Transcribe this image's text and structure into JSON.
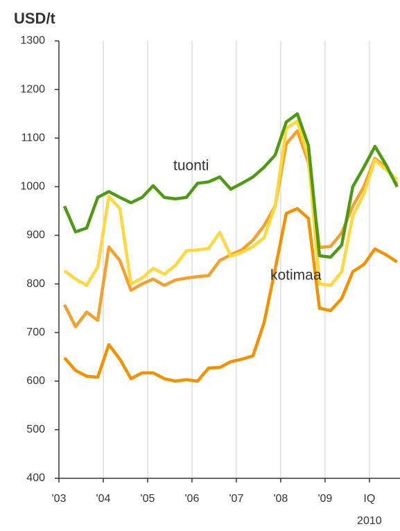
{
  "chart_data": {
    "type": "line",
    "title": "USD/t",
    "x": [
      2003.125,
      2003.375,
      2003.625,
      2003.875,
      2004.125,
      2004.375,
      2004.625,
      2004.875,
      2005.125,
      2005.375,
      2005.625,
      2005.875,
      2006.125,
      2006.375,
      2006.625,
      2006.875,
      2007.125,
      2007.375,
      2007.625,
      2007.875,
      2008.125,
      2008.375,
      2008.625,
      2008.875,
      2009.125,
      2009.375,
      2009.625,
      2009.875,
      2010.125,
      2010.375,
      2010.625
    ],
    "series": [
      {
        "color": "#4e9a12",
        "values": [
          960,
          907,
          915,
          978,
          990,
          978,
          967,
          978,
          1002,
          978,
          975,
          978,
          1007,
          1010,
          1020,
          995,
          1007,
          1020,
          1040,
          1065,
          1133,
          1150,
          1085,
          858,
          855,
          880,
          1000,
          1040,
          1083,
          1045,
          1000
        ]
      },
      {
        "color": "#ffd83a",
        "values": [
          827,
          810,
          797,
          835,
          980,
          955,
          800,
          812,
          832,
          820,
          838,
          868,
          870,
          873,
          906,
          857,
          865,
          877,
          895,
          960,
          1120,
          1135,
          1060,
          800,
          797,
          825,
          940,
          985,
          1055,
          1035,
          1015
        ]
      },
      {
        "color": "#f5a02a",
        "values": [
          757,
          712,
          742,
          725,
          876,
          848,
          787,
          800,
          810,
          797,
          808,
          812,
          815,
          817,
          848,
          860,
          870,
          890,
          920,
          960,
          1088,
          1115,
          1050,
          875,
          877,
          905,
          960,
          1000,
          1058,
          1040,
          1005
        ]
      },
      {
        "color": "#f39200",
        "values": [
          648,
          622,
          610,
          608,
          675,
          645,
          605,
          617,
          617,
          605,
          600,
          603,
          600,
          627,
          628,
          640,
          645,
          652,
          720,
          830,
          945,
          955,
          935,
          750,
          745,
          770,
          825,
          840,
          872,
          860,
          845
        ]
      }
    ],
    "annotations": [
      "tuonti",
      "kotimaa"
    ],
    "xlim": [
      2003,
      2010.69
    ],
    "xticks": [
      {
        "value": 2003,
        "label": "'03"
      },
      {
        "value": 2004,
        "label": "'04"
      },
      {
        "value": 2005,
        "label": "'05"
      },
      {
        "value": 2006,
        "label": "'06"
      },
      {
        "value": 2007,
        "label": "'07"
      },
      {
        "value": 2008,
        "label": "'08"
      },
      {
        "value": 2009,
        "label": "'09"
      },
      {
        "value": 2010,
        "label": "IQ"
      }
    ],
    "xtick_sublabel": "2010",
    "ylim": [
      400,
      1300
    ],
    "yticks": [
      400,
      500,
      600,
      700,
      800,
      900,
      1000,
      1100,
      1200,
      1300
    ],
    "grid": true
  }
}
